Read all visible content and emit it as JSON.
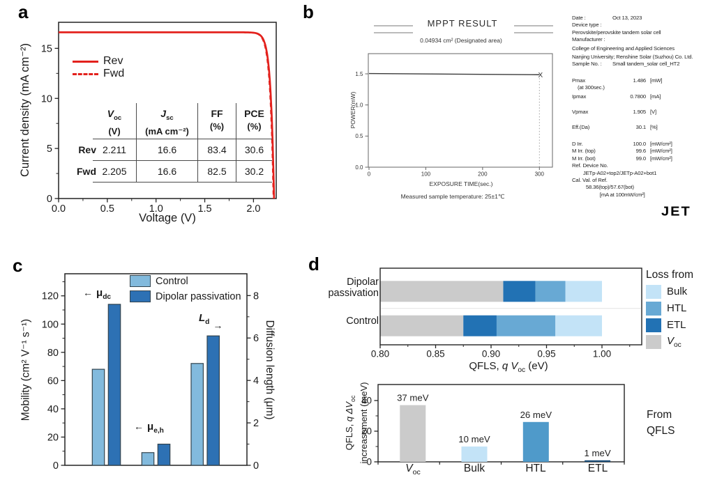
{
  "panel_labels": {
    "a": "a",
    "b": "b",
    "c": "c",
    "d": "d"
  },
  "colors": {
    "red": "#e3211c",
    "control_blue": "#82badd",
    "dipolar_blue": "#2d71b4",
    "bar_outline": "#33444e",
    "gray": "#cbcbcb",
    "etl_blue": "#2272b4",
    "htl_blue": "#68a9d4",
    "bulk_blue": "#c3e3f7",
    "htl_bar": "#4f9aca",
    "etl_bar": "#1c4e79",
    "axis": "#222222"
  },
  "panel_a": {
    "table": {
      "headers": [
        {
          "sym": "V",
          "sub": "oc",
          "unit": "(V)"
        },
        {
          "sym": "J",
          "sub": "sc",
          "unit": "(mA cm⁻²)"
        },
        {
          "sym": "FF",
          "sub": "",
          "unit": "(%)"
        },
        {
          "sym": "PCE",
          "sub": "",
          "unit": "(%)"
        }
      ],
      "rows": [
        {
          "name": "Rev",
          "values": [
            "2.211",
            "16.6",
            "83.4",
            "30.6"
          ]
        },
        {
          "name": "Fwd",
          "values": [
            "2.205",
            "16.6",
            "82.5",
            "30.2"
          ]
        }
      ]
    }
  },
  "panel_b": {
    "logo": "JET",
    "info_rows": [
      {
        "l": "Date :",
        "v": "Oct 13, 2023",
        "kv": true
      },
      {
        "l": "Device type :"
      },
      {
        "l": "Perovskite/perovskite tandem solar cell"
      },
      {
        "l": "Manufacturer :"
      },
      {
        "l": "College of Engineering and Applied Sciences",
        "gap": 2
      },
      {
        "l": "Nanjing University; Renshine Solar (Suzhou) Co. Ltd.",
        "gap": 2
      },
      {
        "l": "Sample No. :",
        "v": "Small tandem_solar cell_HT2",
        "kv": true
      },
      {
        "l": "Pmax",
        "v": "1.486",
        "u": "[mW]",
        "gap": 13
      },
      {
        "l": "    (at 300sec.)"
      },
      {
        "l": "Ipmax",
        "v": "0.7800",
        "u": "[mA]",
        "gap": 2
      },
      {
        "l": "Vpmax",
        "v": "1.905",
        "u": "[V]",
        "gap": 12
      },
      {
        "l": "Eff.(Da)",
        "v": "30.1",
        "u": "[%]",
        "gap": 12
      },
      {
        "l": "D Irr.",
        "v": "100.0",
        "u": "[mW/cm²]",
        "gap": 13
      },
      {
        "l": "M Irr. (top)",
        "v": "99.6",
        "u": "[mW/cm²]"
      },
      {
        "l": "M Irr. (bot)",
        "v": "99.0",
        "u": "[mW/cm²]"
      },
      {
        "l": "Ref. Device No."
      },
      {
        "l": "        JETp-A02+top2/JETp-A02+bot1"
      },
      {
        "l": "Cal. Val. of Ref."
      },
      {
        "l": "          58.36(top)/57.67(bot)"
      },
      {
        "l": "                    [mA at 100mW/cm²]"
      }
    ]
  },
  "panel_c": {
    "annotations": [
      {
        "base": "μ",
        "sub": "dc",
        "arrow": "←"
      },
      {
        "base": "μ",
        "sub": "e,h",
        "arrow": "←"
      },
      {
        "base": "L",
        "sub": "d",
        "arrow": "→"
      }
    ]
  },
  "panel_d": {
    "row_label_1a": "Dipolar",
    "row_label_1b": "passivation",
    "row_label_2": "Control",
    "xlabel_parts": {
      "t1": "QFLS, ",
      "t2": "q V",
      "t3": "oc",
      "t4": " (eV)"
    },
    "legend_items": [
      {
        "label": "Bulk",
        "sub": ""
      },
      {
        "label": "HTL",
        "sub": ""
      },
      {
        "label": "ETL",
        "sub": ""
      },
      {
        "label": "V",
        "sub": "oc"
      }
    ],
    "ylabel2": {
      "t1": "QFLS, ",
      "t2": "q ΔV",
      "t3": "oc",
      "t4": "increasement (meV)"
    },
    "bottom_categories": [
      {
        "label": "V",
        "sub": "oc"
      },
      {
        "label": "Bulk",
        "sub": ""
      },
      {
        "label": "HTL",
        "sub": ""
      },
      {
        "label": "ETL",
        "sub": ""
      }
    ],
    "note_line1": "From",
    "note_line2": "QFLS"
  },
  "chart_data": [
    {
      "panel": "a",
      "type": "line",
      "xlabel": "Voltage (V)",
      "ylabel": "Current density (mA cm⁻²)",
      "xlim": [
        0,
        2.23
      ],
      "ylim": [
        0,
        17.5
      ],
      "xticks": [
        0,
        0.5,
        1,
        1.5,
        2
      ],
      "yticks": [
        0,
        5,
        10,
        15
      ],
      "series": [
        {
          "name": "Rev",
          "style": "solid",
          "voc_v": 2.211,
          "jsc_ma_cm2": 16.6,
          "ff_pct": 83.4,
          "pce_pct": 30.6
        },
        {
          "name": "Fwd",
          "style": "dashed",
          "voc_v": 2.205,
          "jsc_ma_cm2": 16.6,
          "ff_pct": 82.5,
          "pce_pct": 30.2
        }
      ]
    },
    {
      "panel": "b",
      "type": "line",
      "title": "MPPT RESULT",
      "subtitle": "0.04934 cm² (Designated area)",
      "xlabel": "EXPOSURE TIME(sec.)",
      "ylabel": "POWER(mW)",
      "note": "Measured sample temperature: 25±1℃",
      "xlim": [
        0,
        325
      ],
      "ylim": [
        0,
        1.83
      ],
      "xticks": [
        0,
        100,
        200,
        300
      ],
      "yticks": [
        0,
        0.5,
        1,
        1.5
      ],
      "points": [
        [
          0,
          1.505
        ],
        [
          300,
          1.486
        ]
      ],
      "end_marker": "X"
    },
    {
      "panel": "c",
      "type": "bar",
      "categories": [
        "μdc",
        "μe,h",
        "Ld"
      ],
      "group_axes": [
        "left",
        "left",
        "right"
      ],
      "ylabel_left": "Mobility (cm² V⁻¹ s⁻¹)",
      "ylabel_right": "Diffusion length (μm)",
      "ylim_left": [
        0,
        135
      ],
      "yticks_left": [
        0,
        20,
        40,
        60,
        80,
        100,
        120
      ],
      "ylim_right": [
        0,
        9
      ],
      "yticks_right": [
        0,
        2,
        4,
        6,
        8
      ],
      "series": [
        {
          "name": "Control",
          "values": [
            68,
            9,
            4.8
          ]
        },
        {
          "name": "Dipolar passivation",
          "values": [
            114,
            15,
            6.1
          ]
        }
      ]
    },
    {
      "panel": "d-top",
      "type": "stacked-bar-h",
      "xlabel": "QFLS, q Voc (eV)",
      "xlim": [
        0.8,
        1.036
      ],
      "xticks": [
        0.8,
        0.85,
        0.9,
        0.95,
        1.0
      ],
      "legend_title": "Loss from",
      "segment_order": [
        "Voc",
        "ETL",
        "HTL",
        "Bulk"
      ],
      "legend_order": [
        "Bulk",
        "HTL",
        "ETL",
        "Voc"
      ],
      "rows": [
        {
          "name": "Dipolar passivation",
          "bounds_ev": [
            0.8,
            0.911,
            0.94,
            0.967,
            1.0
          ]
        },
        {
          "name": "Control",
          "bounds_ev": [
            0.8,
            0.875,
            0.905,
            0.958,
            1.0
          ]
        }
      ]
    },
    {
      "panel": "d-bottom",
      "type": "bar",
      "categories": [
        "Voc",
        "Bulk",
        "HTL",
        "ETL"
      ],
      "values_mev": [
        37,
        10,
        26,
        1
      ],
      "bar_labels": [
        "37 meV",
        "10 meV",
        "26 meV",
        "1 meV"
      ],
      "note": "From QFLS",
      "ylabel": "QFLS, q ΔVoc increasement (meV)",
      "ylim": [
        0,
        50
      ],
      "yticks": [
        0,
        20,
        40
      ]
    }
  ]
}
